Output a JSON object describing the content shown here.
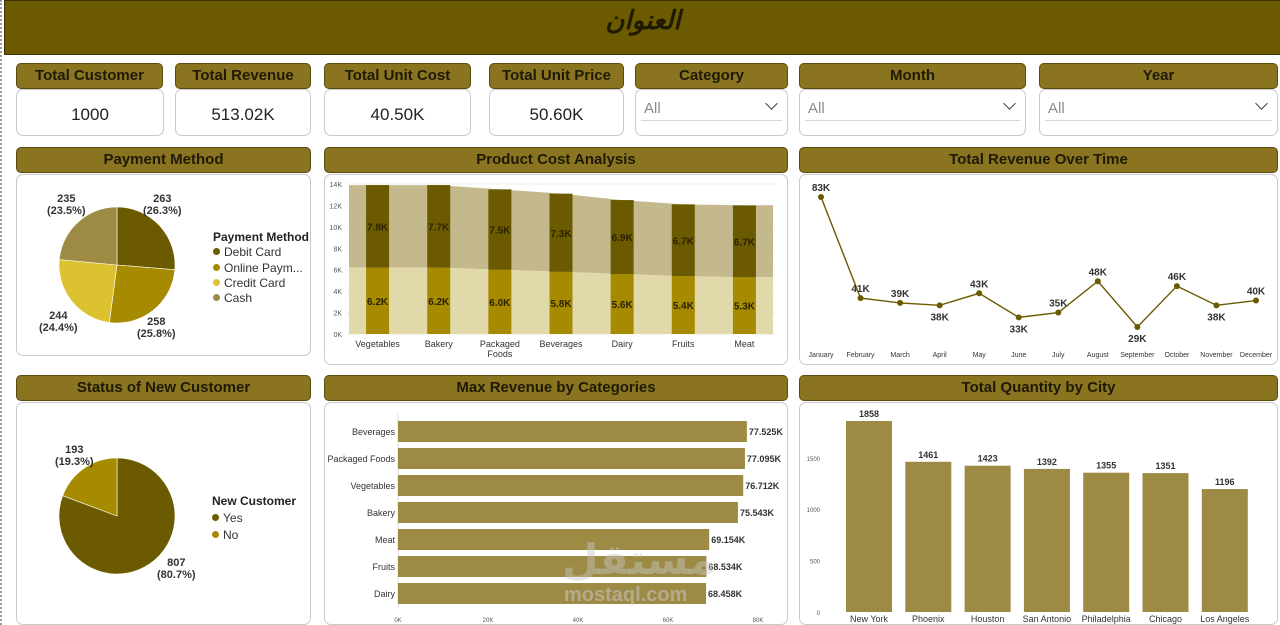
{
  "title": "العنوان",
  "colors": {
    "header_bg": "#6b5a00",
    "panel_header": "#8a7420",
    "dark_olive": "#6b5a00",
    "gold": "#a68a00",
    "yellow": "#dcc231",
    "tan": "#9c8a45",
    "light_tan": "#e2d9ab",
    "taupe": "#c4b98d"
  },
  "kpis": [
    {
      "label": "Total Customer",
      "value": "1000"
    },
    {
      "label": "Total Revenue",
      "value": "513.02K"
    },
    {
      "label": "Total Unit Cost",
      "value": "40.50K"
    },
    {
      "label": "Total Unit Price",
      "value": "50.60K"
    }
  ],
  "slicers": [
    {
      "label": "Category",
      "value": "All",
      "icon": "chevron-down-icon"
    },
    {
      "label": "Month",
      "value": "All",
      "icon": "chevron-down-icon"
    },
    {
      "label": "Year",
      "value": "All",
      "icon": "chevron-down-icon"
    }
  ],
  "payment": {
    "title": "Payment Method",
    "legend_title": "Payment Method",
    "legend": [
      "Debit Card",
      "Online Paym...",
      "Credit Card",
      "Cash"
    ],
    "labels": [
      {
        "count": "263",
        "pct": "(26.3%)"
      },
      {
        "count": "258",
        "pct": "(25.8%)"
      },
      {
        "count": "244",
        "pct": "(24.4%)"
      },
      {
        "count": "235",
        "pct": "(23.5%)"
      }
    ]
  },
  "product_cost": {
    "title": "Product Cost Analysis",
    "yticks": [
      "14K",
      "12K",
      "10K",
      "8K",
      "6K",
      "4K",
      "2K",
      "0K"
    ],
    "categories": [
      "Vegetables",
      "Bakery",
      "Packaged Foods",
      "Beverages",
      "Dairy",
      "Fruits",
      "Meat"
    ],
    "top_labels": [
      "7.8K",
      "7.7K",
      "7.5K",
      "7.3K",
      "6.9K",
      "6.7K",
      "6.7K"
    ],
    "bottom_labels": [
      "6.2K",
      "6.2K",
      "6.0K",
      "5.8K",
      "5.6K",
      "5.4K",
      "5.3K"
    ]
  },
  "revenue_time": {
    "title": "Total Revenue Over Time",
    "months": [
      "January",
      "February",
      "March",
      "April",
      "May",
      "June",
      "July",
      "August",
      "September",
      "October",
      "November",
      "December"
    ],
    "labels": [
      "83K",
      "41K",
      "39K",
      "38K",
      "43K",
      "33K",
      "35K",
      "48K",
      "29K",
      "46K",
      "38K",
      "40K"
    ]
  },
  "new_customer": {
    "title": "Status of New Customer",
    "legend_title": "New Customer",
    "legend": [
      "Yes",
      "No"
    ],
    "labels": [
      {
        "count": "807",
        "pct": "(80.7%)"
      },
      {
        "count": "193",
        "pct": "(19.3%)"
      }
    ]
  },
  "max_revenue": {
    "title": "Max Revenue by Categories",
    "categories": [
      "Beverages",
      "Packaged Foods",
      "Vegetables",
      "Bakery",
      "Meat",
      "Fruits",
      "Dairy"
    ],
    "labels": [
      "77.525K",
      "77.095K",
      "76.712K",
      "75.543K",
      "69.154K",
      "68.534K",
      "68.458K"
    ],
    "xticks": [
      "0K",
      "20K",
      "40K",
      "60K",
      "80K"
    ]
  },
  "city_qty": {
    "title": "Total Quantity by City",
    "cities": [
      "New York",
      "Phoenix",
      "Houston",
      "San Antonio",
      "Philadelphia",
      "Chicago",
      "Los Angeles"
    ],
    "labels": [
      "1858",
      "1461",
      "1423",
      "1392",
      "1355",
      "1351",
      "1196"
    ],
    "yticks": [
      "1500",
      "1000",
      "500",
      "0"
    ]
  },
  "watermark": {
    "arabic": "مستقل",
    "latin": "mostaql.com"
  },
  "chart_data": [
    {
      "type": "pie",
      "title": "Payment Method",
      "categories": [
        "Debit Card",
        "Online Payment",
        "Credit Card",
        "Cash"
      ],
      "values": [
        263,
        258,
        244,
        235
      ]
    },
    {
      "type": "bar",
      "title": "Product Cost Analysis",
      "categories": [
        "Vegetables",
        "Bakery",
        "Packaged Foods",
        "Beverages",
        "Dairy",
        "Fruits",
        "Meat"
      ],
      "series": [
        {
          "values": [
            6.2,
            6.2,
            6.0,
            5.8,
            5.6,
            5.4,
            5.3
          ]
        },
        {
          "values": [
            7.8,
            7.7,
            7.5,
            7.3,
            6.9,
            6.7,
            6.7
          ]
        }
      ],
      "area_top": [
        13.9,
        13.9,
        13.5,
        13.1,
        12.5,
        12.1,
        12.0
      ],
      "area_bottom": [
        6.2,
        6.2,
        6.0,
        5.8,
        5.6,
        5.4,
        5.3
      ],
      "ylim": [
        0,
        14
      ]
    },
    {
      "type": "line",
      "title": "Total Revenue Over Time",
      "x": [
        "January",
        "February",
        "March",
        "April",
        "May",
        "June",
        "July",
        "August",
        "September",
        "October",
        "November",
        "December"
      ],
      "values": [
        83,
        41,
        39,
        38,
        43,
        33,
        35,
        48,
        29,
        46,
        38,
        40
      ],
      "ylim": [
        20,
        90
      ]
    },
    {
      "type": "pie",
      "title": "Status of New Customer",
      "categories": [
        "Yes",
        "No"
      ],
      "values": [
        807,
        193
      ]
    },
    {
      "type": "bar",
      "orientation": "horizontal",
      "title": "Max Revenue by Categories",
      "categories": [
        "Beverages",
        "Packaged Foods",
        "Vegetables",
        "Bakery",
        "Meat",
        "Fruits",
        "Dairy"
      ],
      "values": [
        77.525,
        77.095,
        76.712,
        75.543,
        69.154,
        68.534,
        68.458
      ],
      "xlim": [
        0,
        80
      ]
    },
    {
      "type": "bar",
      "title": "Total Quantity by City",
      "categories": [
        "New York",
        "Phoenix",
        "Houston",
        "San Antonio",
        "Philadelphia",
        "Chicago",
        "Los Angeles"
      ],
      "values": [
        1858,
        1461,
        1423,
        1392,
        1355,
        1351,
        1196
      ],
      "ylim": [
        0,
        2000
      ]
    }
  ]
}
